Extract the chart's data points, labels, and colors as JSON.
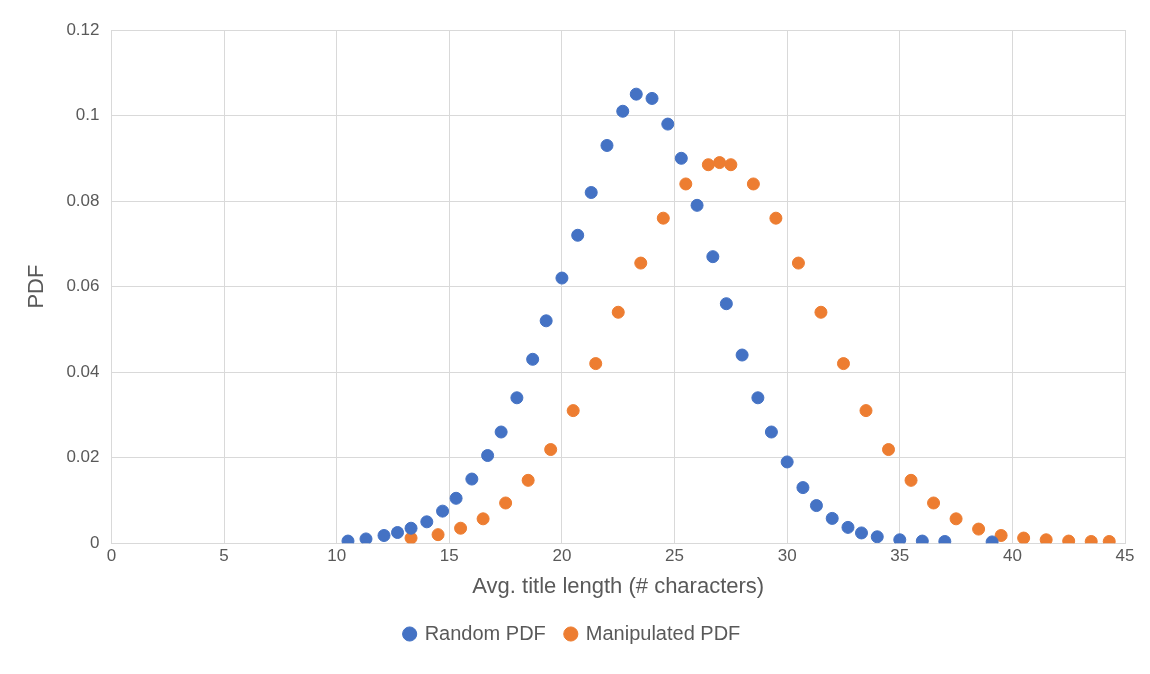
{
  "chart_data": {
    "type": "scatter",
    "xlabel": "Avg. title length (# characters)",
    "ylabel": "PDF",
    "xlim": [
      0,
      45
    ],
    "xticks": [
      0,
      5,
      10,
      15,
      20,
      25,
      30,
      35,
      40,
      45
    ],
    "ylim": [
      0,
      0.12
    ],
    "yticks": [
      0,
      0.02,
      0.04,
      0.06,
      0.08,
      0.1,
      0.12
    ],
    "grid": true,
    "legend": "bottom",
    "marker": "circle",
    "series": [
      {
        "name": "Random PDF",
        "color": "#4472c4",
        "x": [
          10.5,
          11.3,
          12.1,
          12.7,
          13.3,
          14,
          14.7,
          15.3,
          16,
          16.7,
          17.3,
          18,
          18.7,
          19.3,
          20,
          20.7,
          21.3,
          22,
          22.7,
          23.3,
          24,
          24.7,
          25.3,
          26,
          26.7,
          27.3,
          28,
          28.7,
          29.3,
          30,
          30.7,
          31.3,
          32,
          32.7,
          33.3,
          34,
          35,
          36,
          37,
          39.1
        ],
        "values": [
          0.0005,
          0.001,
          0.0018,
          0.0025,
          0.0035,
          0.005,
          0.0075,
          0.0105,
          0.015,
          0.0205,
          0.026,
          0.034,
          0.043,
          0.052,
          0.062,
          0.072,
          0.082,
          0.093,
          0.101,
          0.105,
          0.104,
          0.098,
          0.09,
          0.079,
          0.067,
          0.056,
          0.044,
          0.034,
          0.026,
          0.019,
          0.013,
          0.0088,
          0.0058,
          0.0037,
          0.0024,
          0.0015,
          0.0008,
          0.0005,
          0.0004,
          0.0003
        ]
      },
      {
        "name": "Manipulated PDF",
        "color": "#ed7d31",
        "x": [
          13.3,
          14.5,
          15.5,
          16.5,
          17.5,
          18.5,
          19.5,
          20.5,
          21.5,
          22.5,
          23.5,
          24.5,
          25.5,
          26.5,
          27,
          27.5,
          28.5,
          29.5,
          30.5,
          31.5,
          32.5,
          33.5,
          34.5,
          35.5,
          36.5,
          37.5,
          38.5,
          39.5,
          40.5,
          41.5,
          42.5,
          43.5,
          44.3
        ],
        "values": [
          0.0012,
          0.002,
          0.0035,
          0.0057,
          0.0094,
          0.0147,
          0.0219,
          0.031,
          0.042,
          0.054,
          0.0655,
          0.076,
          0.084,
          0.0885,
          0.089,
          0.0885,
          0.084,
          0.076,
          0.0655,
          0.054,
          0.042,
          0.031,
          0.0219,
          0.0147,
          0.0094,
          0.0057,
          0.0033,
          0.0018,
          0.0012,
          0.0008,
          0.0005,
          0.0004,
          0.0004
        ]
      }
    ]
  }
}
